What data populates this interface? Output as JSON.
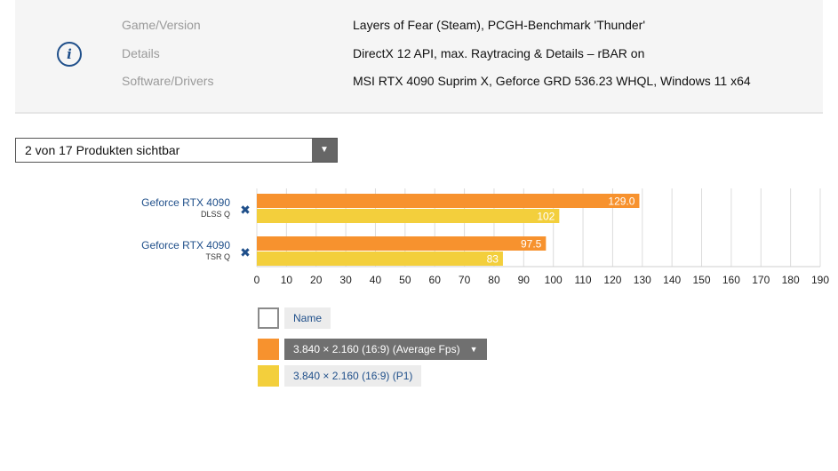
{
  "info": {
    "rows": [
      {
        "label": "Game/Version",
        "value": "Layers of Fear (Steam), PCGH-Benchmark 'Thunder'"
      },
      {
        "label": "Details",
        "value": "DirectX 12 API, max. Raytracing & Details – rBAR on"
      },
      {
        "label": "Software/Drivers",
        "value": "MSI RTX 4090 Suprim X, Geforce GRD 536.23 WHQL, Windows 11 x64"
      }
    ],
    "icon": "info-icon",
    "icon_glyph": "i"
  },
  "filter": {
    "label": "2 von 17 Produkten sichtbar",
    "arrow": "▼"
  },
  "chart_data": {
    "type": "bar",
    "orientation": "horizontal",
    "categories": [
      {
        "name": "Geforce RTX 4090",
        "sub": "DLSS Q"
      },
      {
        "name": "Geforce RTX 4090",
        "sub": "TSR Q"
      }
    ],
    "series": [
      {
        "name": "3.840 × 2.160 (16:9) (Average Fps)",
        "values": [
          129.0,
          97.5
        ],
        "labels": [
          "129.0",
          "97.5"
        ],
        "color": "#f7922e"
      },
      {
        "name": "3.840 × 2.160 (16:9) (P1)",
        "values": [
          102,
          83
        ],
        "labels": [
          "102",
          "83"
        ],
        "color": "#f3cf3c"
      }
    ],
    "xlim": [
      0,
      190
    ],
    "xticks": [
      0,
      10,
      20,
      30,
      40,
      50,
      60,
      70,
      80,
      90,
      100,
      110,
      120,
      130,
      140,
      150,
      160,
      170,
      180,
      190
    ],
    "grid": true,
    "remove_glyph": "✖"
  },
  "legend": {
    "name_label": "Name",
    "arrow": "▼"
  },
  "colors": {
    "accent": "#1f4f8a",
    "orange": "#f7922e",
    "yellow": "#f3cf3c"
  }
}
